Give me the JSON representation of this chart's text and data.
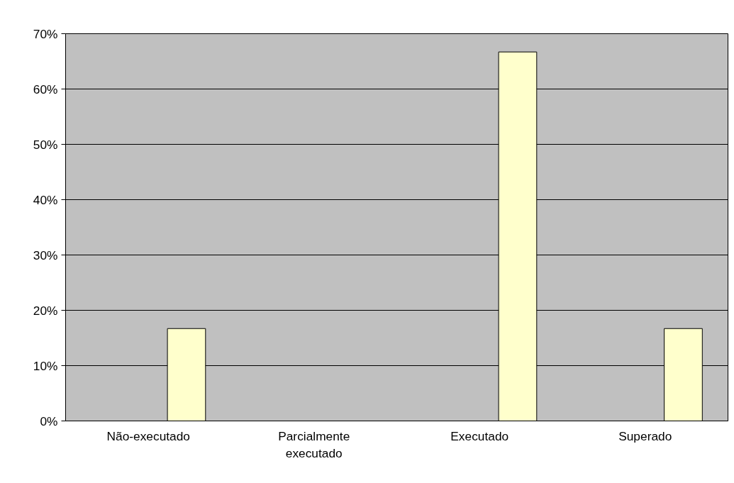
{
  "chart_data": {
    "type": "bar",
    "categories": [
      "Não-executado",
      "Parcialmente executado",
      "Executado",
      "Superado"
    ],
    "values": [
      16.7,
      0,
      66.7,
      16.7
    ],
    "color": "#ffffcc",
    "ylim": [
      0,
      70
    ],
    "yticks": [
      {
        "value": 0,
        "label": "0%"
      },
      {
        "value": 10,
        "label": "10%"
      },
      {
        "value": 20,
        "label": "20%"
      },
      {
        "value": 30,
        "label": "30%"
      },
      {
        "value": 40,
        "label": "40%"
      },
      {
        "value": 50,
        "label": "50%"
      },
      {
        "value": 60,
        "label": "60%"
      },
      {
        "value": 70,
        "label": "70%"
      }
    ],
    "grid": "y"
  }
}
